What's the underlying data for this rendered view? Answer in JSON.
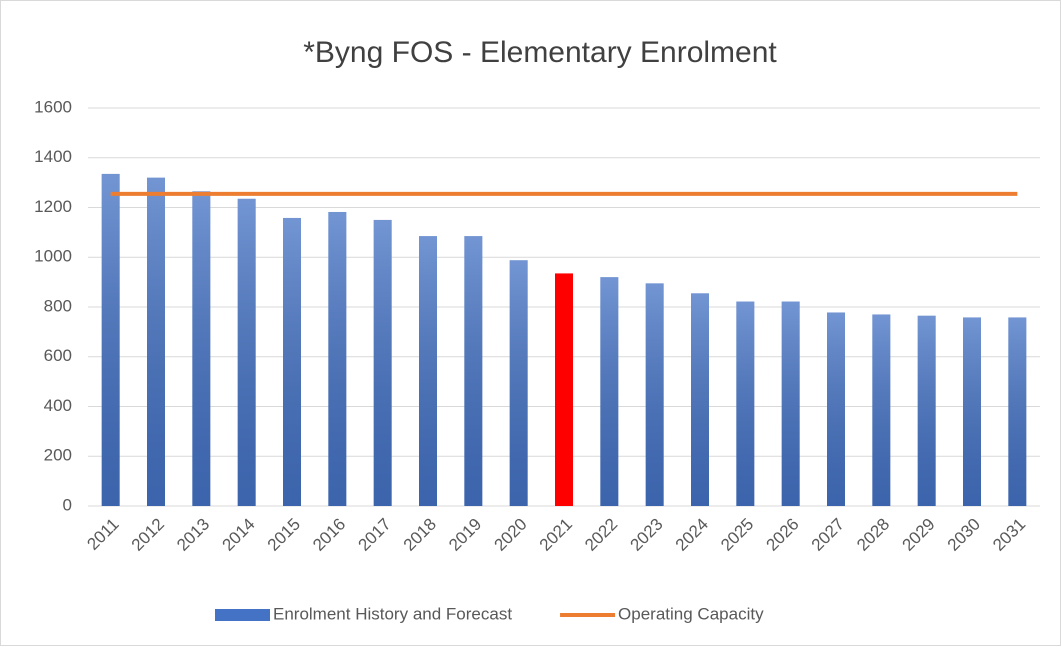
{
  "chart_data": {
    "type": "bar",
    "title": "*Byng FOS - Elementary Enrolment",
    "categories": [
      "2011",
      "2012",
      "2013",
      "2014",
      "2015",
      "2016",
      "2017",
      "2018",
      "2019",
      "2020",
      "2021",
      "2022",
      "2023",
      "2024",
      "2025",
      "2026",
      "2027",
      "2028",
      "2029",
      "2030",
      "2031"
    ],
    "series": [
      {
        "name": "Enrolment History and Forecast",
        "type": "bar",
        "color": "#4472c4",
        "colors": [
          "#4472c4",
          "#4472c4",
          "#4472c4",
          "#4472c4",
          "#4472c4",
          "#4472c4",
          "#4472c4",
          "#4472c4",
          "#4472c4",
          "#4472c4",
          "#ff0000",
          "#4472c4",
          "#4472c4",
          "#4472c4",
          "#4472c4",
          "#4472c4",
          "#4472c4",
          "#4472c4",
          "#4472c4",
          "#4472c4",
          "#4472c4"
        ],
        "values": [
          1335,
          1320,
          1265,
          1235,
          1158,
          1182,
          1150,
          1085,
          1085,
          988,
          935,
          920,
          895,
          855,
          822,
          822,
          778,
          770,
          765,
          758,
          758
        ]
      },
      {
        "name": "Operating Capacity",
        "type": "line",
        "color": "#ed7d31",
        "values": [
          1255,
          1255,
          1255,
          1255,
          1255,
          1255,
          1255,
          1255,
          1255,
          1255,
          1255,
          1255,
          1255,
          1255,
          1255,
          1255,
          1255,
          1255,
          1255,
          1255,
          1255
        ]
      }
    ],
    "ylim": [
      0,
      1600
    ],
    "yticks": [
      0,
      200,
      400,
      600,
      800,
      1000,
      1200,
      1400,
      1600
    ],
    "grid": true,
    "legend": "bottom"
  }
}
